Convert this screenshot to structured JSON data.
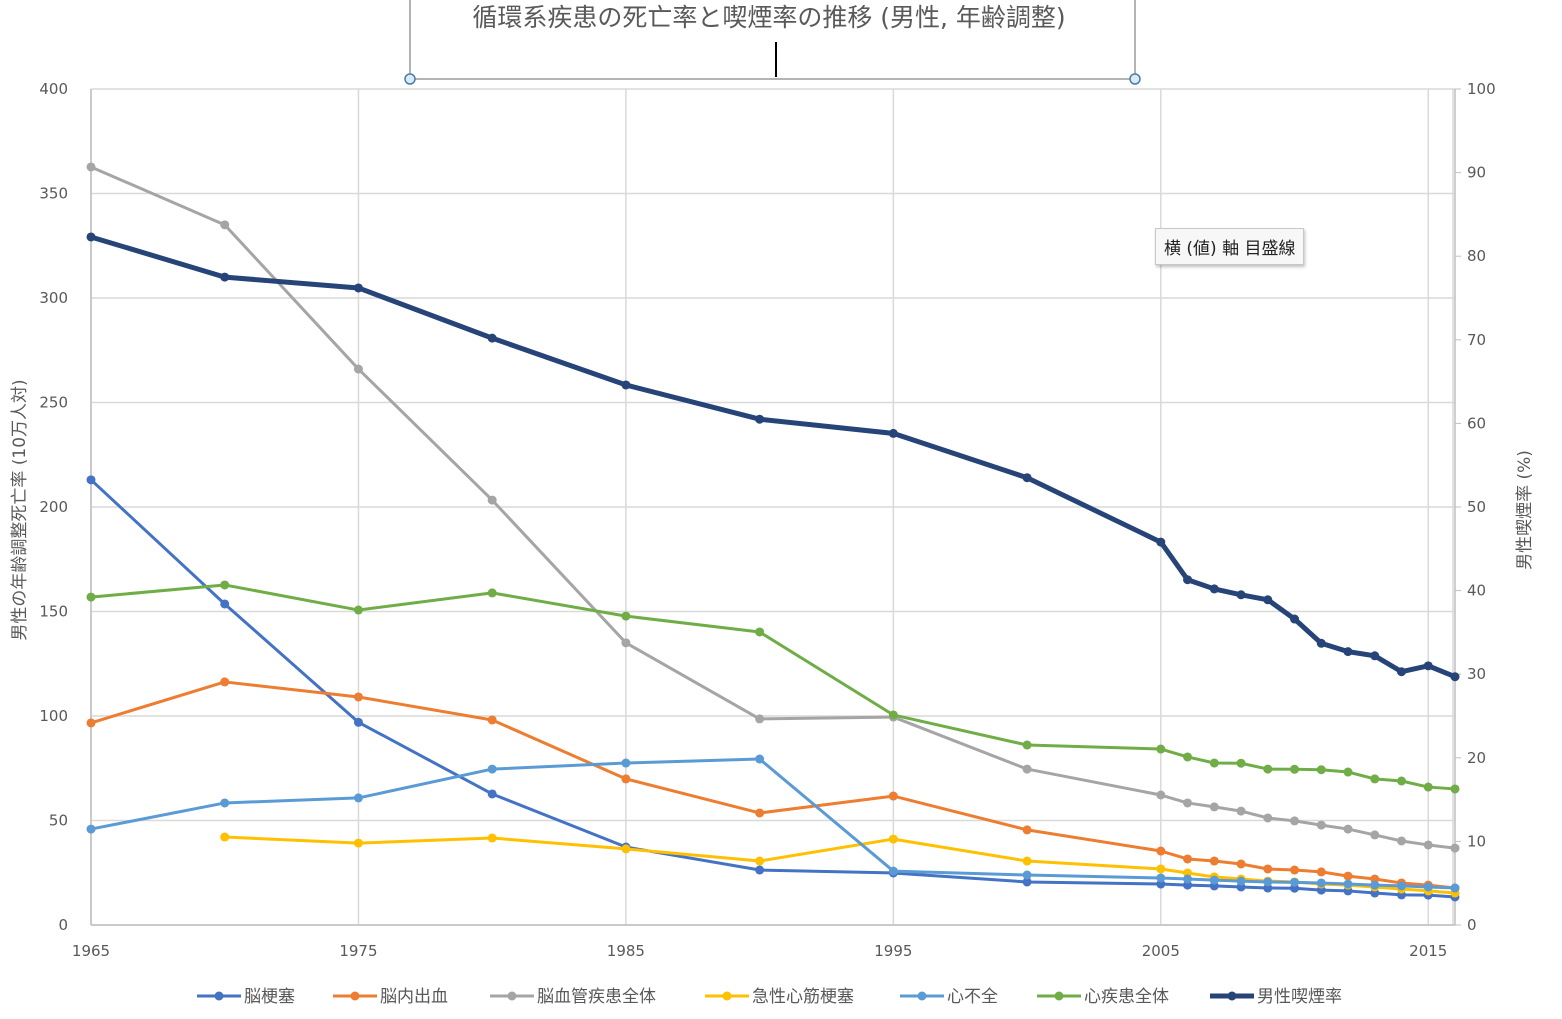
{
  "chart_data": {
    "type": "line",
    "title": "循環系疾患の死亡率と喫煙率の推移 (男性, 年齢調整)",
    "ylabel": "男性の年齢調整死亡率 (10万人対)",
    "y2label": "男性喫煙率 (%)",
    "xlabel": "",
    "xlim": [
      1965,
      2016
    ],
    "ylim": [
      0,
      400
    ],
    "y2lim": [
      0,
      100
    ],
    "x_ticks": [
      "1965",
      "1975",
      "1985",
      "1995",
      "2005",
      "2015"
    ],
    "y_ticks": [
      "0",
      "50",
      "100",
      "150",
      "200",
      "250",
      "300",
      "350",
      "400"
    ],
    "y2_ticks": [
      "0",
      "10",
      "20",
      "30",
      "40",
      "50",
      "60",
      "70",
      "80",
      "90",
      "100"
    ],
    "grid": true,
    "legend_position": "bottom",
    "x": [
      1965,
      1970,
      1975,
      1980,
      1985,
      1990,
      1995,
      2000,
      2005,
      2006,
      2007,
      2008,
      2009,
      2010,
      2011,
      2012,
      2013,
      2014,
      2015,
      2016
    ],
    "series": [
      {
        "name": "脳梗塞",
        "axis": "left",
        "color": "#4472c4",
        "width": 3,
        "values": [
          213,
          153.6,
          97,
          62.7,
          37.3,
          26.3,
          24.9,
          20.6,
          19.6,
          19.1,
          18.7,
          18.2,
          17.7,
          17.6,
          16.7,
          16.3,
          15.3,
          14.4,
          14.3,
          13.4
        ]
      },
      {
        "name": "脳内出血",
        "axis": "left",
        "color": "#ed7d31",
        "width": 3,
        "values": [
          96.7,
          116.3,
          109.1,
          98.1,
          69.9,
          53.6,
          61.7,
          45.5,
          35.4,
          31.6,
          30.6,
          29.2,
          26.8,
          26.3,
          25.4,
          23.4,
          22.0,
          20.1,
          19.1,
          17.7
        ]
      },
      {
        "name": "脳血管疾患全体",
        "axis": "left",
        "color": "#a5a5a5",
        "width": 3,
        "values": [
          362.7,
          335,
          266,
          203.3,
          135,
          98.6,
          99.5,
          74.6,
          62.2,
          58.4,
          56.5,
          54.5,
          51.2,
          49.8,
          47.8,
          45.9,
          43.1,
          40.2,
          38.3,
          36.8
        ]
      },
      {
        "name": "急性心筋梗塞",
        "axis": "left",
        "color": "#ffc000",
        "width": 3,
        "values": [
          null,
          42.1,
          39.2,
          41.6,
          36.4,
          30.6,
          41.1,
          30.6,
          26.8,
          24.9,
          23.0,
          22.0,
          21.0,
          20.6,
          19.6,
          19.1,
          18.2,
          17.2,
          16.3,
          15.3
        ]
      },
      {
        "name": "心不全",
        "axis": "left",
        "color": "#5b9bd5",
        "width": 3,
        "values": [
          45.9,
          58.4,
          60.8,
          74.6,
          77.5,
          79.4,
          25.8,
          23.9,
          22.5,
          22.0,
          21.5,
          21.0,
          20.6,
          20.4,
          20.1,
          19.6,
          19.1,
          18.7,
          18.2,
          17.7
        ]
      },
      {
        "name": "心疾患全体",
        "axis": "left",
        "color": "#70ad47",
        "width": 3,
        "values": [
          156.9,
          162.7,
          150.7,
          158.9,
          147.8,
          140.2,
          100.5,
          86.1,
          84.2,
          80.4,
          77.5,
          77.4,
          74.6,
          74.5,
          74.3,
          73.2,
          69.9,
          68.9,
          66.0,
          65.1
        ]
      },
      {
        "name": "男性喫煙率",
        "axis": "right",
        "color": "#264478",
        "width": 5,
        "values": [
          82.3,
          77.5,
          76.2,
          70.2,
          64.6,
          60.5,
          58.8,
          53.5,
          45.8,
          41.3,
          40.2,
          39.5,
          38.9,
          36.6,
          33.7,
          32.7,
          32.2,
          30.3,
          31.0,
          29.7
        ]
      }
    ]
  },
  "tooltip": "横 (値) 軸 目盛線"
}
